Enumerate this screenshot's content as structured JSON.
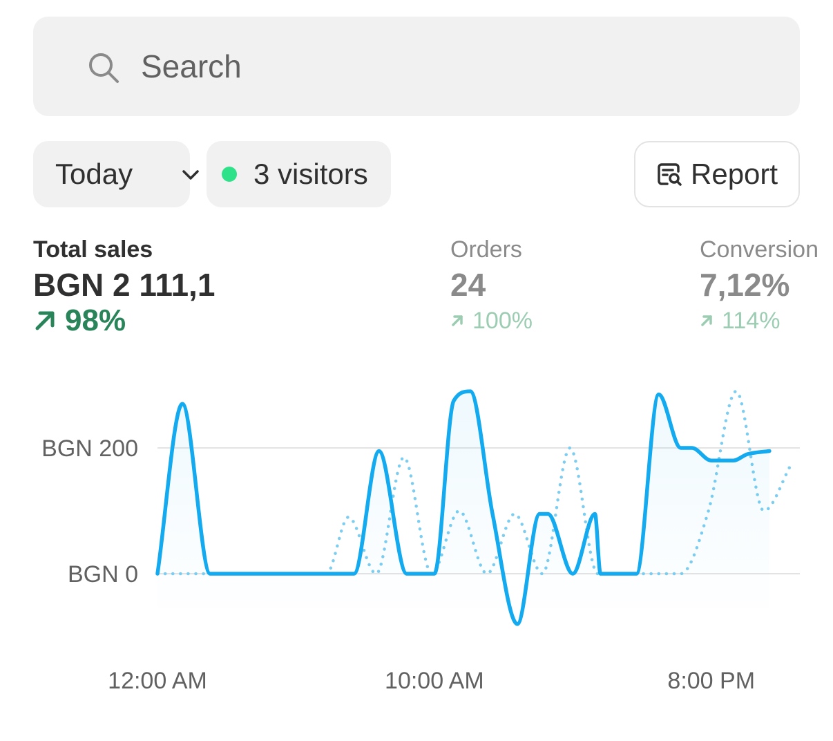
{
  "search": {
    "placeholder": "Search",
    "icon": "search-icon"
  },
  "filters": {
    "date_range": "Today",
    "visitors": "3 visitors",
    "visitors_dot_color": "#2ee28a",
    "report_label": "Report"
  },
  "metrics": {
    "total_sales": {
      "label": "Total sales",
      "value": "BGN 2 111,1",
      "delta": "98%"
    },
    "orders": {
      "label": "Orders",
      "value": "24",
      "delta": "100%"
    },
    "conversion": {
      "label": "Conversion",
      "value": "7,12%",
      "delta": "114%"
    }
  },
  "chart_data": {
    "type": "line",
    "y_tick_labels": [
      "BGN 0",
      "BGN 200"
    ],
    "y_ticks": [
      0,
      200
    ],
    "ylim": [
      -80,
      300
    ],
    "x_tick_labels": [
      "12:00 AM",
      "10:00 AM",
      "8:00 PM"
    ],
    "x_ticks": [
      0,
      10,
      20
    ],
    "xlim": [
      0,
      23
    ],
    "grid": true,
    "colors": {
      "current": "#13aaf0",
      "comparison": "#7ccdf0"
    },
    "series": [
      {
        "style": "solid",
        "x": [
          0,
          0.9,
          1.9,
          3,
          4,
          5,
          6,
          7,
          7.1,
          8,
          9,
          10,
          10.7,
          11.3,
          12.1,
          13,
          13.8,
          14.1,
          15,
          15.8,
          16,
          16.7,
          17.3,
          18.1,
          18.9,
          19.3,
          20,
          20.8,
          21.3,
          22.1
        ],
        "y": [
          0,
          270,
          0,
          0,
          0,
          0,
          0,
          0,
          0,
          195,
          0,
          0,
          275,
          290,
          95,
          -80,
          95,
          95,
          0,
          95,
          0,
          0,
          0,
          285,
          200,
          200,
          180,
          180,
          190,
          195
        ]
      },
      {
        "style": "dotted",
        "x": [
          0,
          1,
          2,
          6.1,
          6.9,
          7.9,
          8.9,
          9.9,
          10.9,
          11.9,
          12.9,
          13.9,
          14.9,
          15.9,
          16.9,
          17.9,
          18.9,
          19.9,
          20.9,
          21.9,
          22.9
        ],
        "y": [
          0,
          0,
          0,
          0,
          90,
          0,
          185,
          0,
          100,
          0,
          95,
          0,
          200,
          0,
          0,
          0,
          0,
          100,
          290,
          100,
          175
        ]
      }
    ]
  }
}
